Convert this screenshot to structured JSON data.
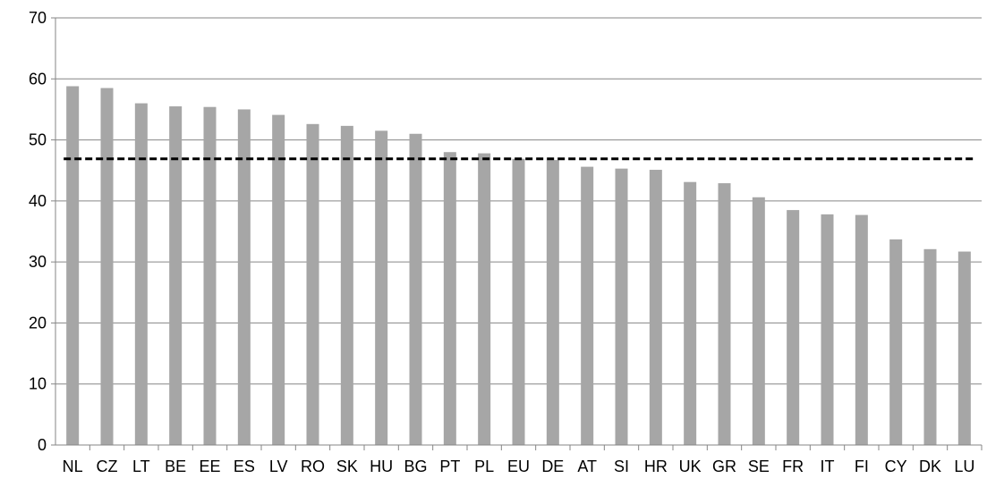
{
  "colors": {
    "bar": "#a6a6a6",
    "grid": "#868686",
    "axis": "#868686",
    "reference_line": "#000000",
    "background": "#ffffff"
  },
  "chart_data": {
    "type": "bar",
    "title": "",
    "xlabel": "",
    "ylabel": "",
    "ylim": [
      0,
      70
    ],
    "yticks": [
      0,
      10,
      20,
      30,
      40,
      50,
      60,
      70
    ],
    "grid": true,
    "legend": "none",
    "categories": [
      "NL",
      "CZ",
      "LT",
      "BE",
      "EE",
      "ES",
      "LV",
      "RO",
      "SK",
      "HU",
      "BG",
      "PT",
      "PL",
      "EU",
      "DE",
      "AT",
      "SI",
      "HR",
      "UK",
      "GR",
      "SE",
      "FR",
      "IT",
      "FI",
      "CY",
      "DK",
      "LU"
    ],
    "values": [
      58.8,
      58.5,
      56.0,
      55.5,
      55.4,
      55.0,
      54.1,
      52.6,
      52.3,
      51.5,
      51.0,
      48.0,
      47.8,
      46.9,
      46.7,
      45.6,
      45.3,
      45.1,
      43.1,
      42.9,
      40.6,
      38.5,
      37.8,
      37.7,
      33.7,
      32.1,
      31.7
    ],
    "reference_line": {
      "value": 46.9,
      "style": "dashed"
    }
  }
}
